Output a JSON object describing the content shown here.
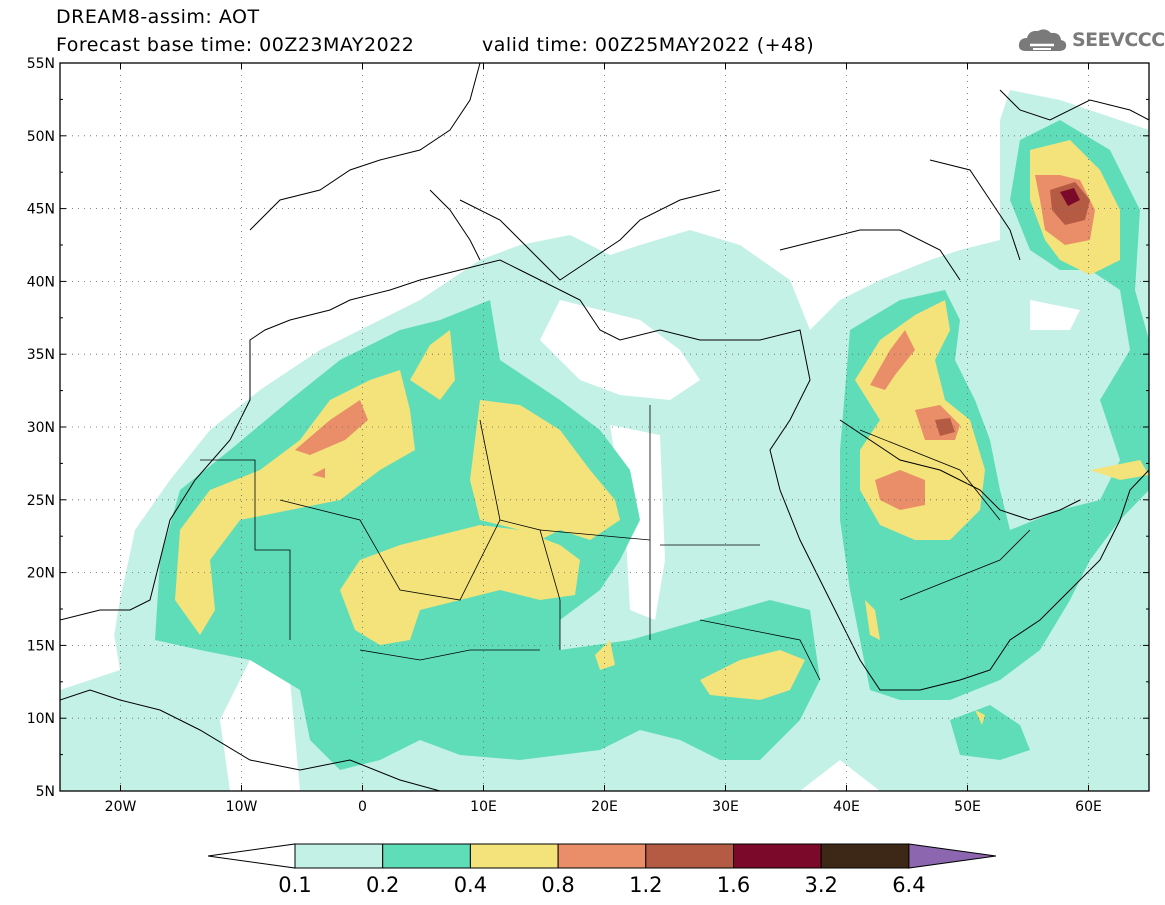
{
  "header": {
    "title": "DREAM8-assim: AOT",
    "base_time": "Forecast base time: 00Z23MAY2022",
    "valid_time": "valid time: 00Z25MAY2022 (+48)",
    "logo_text": "SEEVCCC"
  },
  "map": {
    "lon_range": [
      -25,
      65
    ],
    "lat_range": [
      5,
      55
    ],
    "lat_ticks": [
      "55N",
      "50N",
      "45N",
      "40N",
      "35N",
      "30N",
      "25N",
      "20N",
      "15N",
      "10N",
      "5N"
    ],
    "lat_tick_values": [
      55,
      50,
      45,
      40,
      35,
      30,
      25,
      20,
      15,
      10,
      5
    ],
    "lon_ticks": [
      "20W",
      "10W",
      "0",
      "10E",
      "20E",
      "30E",
      "40E",
      "50E",
      "60E"
    ],
    "lon_tick_values": [
      -20,
      -10,
      0,
      10,
      20,
      30,
      40,
      50,
      60
    ],
    "grid": "dotted"
  },
  "colorbar": {
    "labels": [
      "0.1",
      "0.2",
      "0.4",
      "0.8",
      "1.2",
      "1.6",
      "3.2",
      "6.4"
    ],
    "colors": [
      "#ffffff",
      "#c4f1e6",
      "#5fddb8",
      "#f4e37a",
      "#e98e68",
      "#b55a43",
      "#7b0a2a",
      "#3d2717",
      "#8c66ae"
    ]
  },
  "chart_data": {
    "type": "heatmap",
    "title": "DREAM8-assim: AOT",
    "xlim": [
      -25,
      65
    ],
    "ylim": [
      5,
      55
    ],
    "levels": [
      0.1,
      0.2,
      0.4,
      0.8,
      1.2,
      1.6,
      3.2,
      6.4
    ],
    "colors": [
      "#c4f1e6",
      "#5fddb8",
      "#f4e37a",
      "#e98e68",
      "#b55a43",
      "#7b0a2a",
      "#3d2717",
      "#8c66ae"
    ]
  }
}
